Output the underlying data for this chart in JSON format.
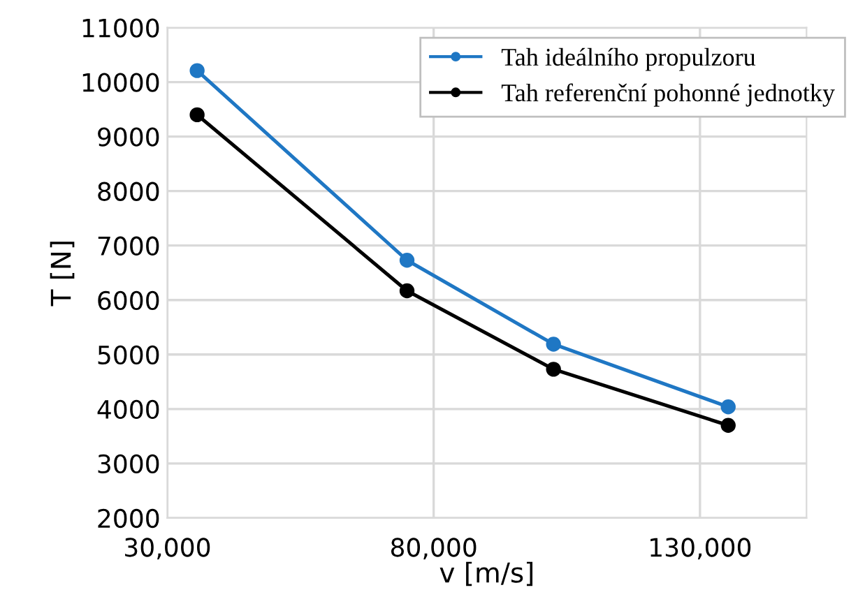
{
  "chart_data": {
    "type": "line",
    "xlabel": "v [m/s]",
    "ylabel": "T [N]",
    "x": [
      35600,
      75000,
      102500,
      135300
    ],
    "series": [
      {
        "name": "Tah ideálního propulzoru",
        "color": "#1f77c4",
        "values": [
          10210,
          6730,
          5190,
          4040
        ]
      },
      {
        "name": "Tah referenční pohonné jednotky",
        "color": "#000000",
        "values": [
          9400,
          6170,
          4730,
          3700
        ]
      }
    ],
    "xlim": [
      30000,
      150000
    ],
    "xticks": [
      {
        "value": 30000,
        "label": "30,000"
      },
      {
        "value": 80000,
        "label": "80,000"
      },
      {
        "value": 130000,
        "label": "130,000"
      }
    ],
    "ylim": [
      2000,
      11000
    ],
    "yticks": [
      2000,
      3000,
      4000,
      5000,
      6000,
      7000,
      8000,
      9000,
      10000,
      11000
    ],
    "grid": true,
    "legend": "top right",
    "marker": "circle",
    "line_style": "solid"
  }
}
